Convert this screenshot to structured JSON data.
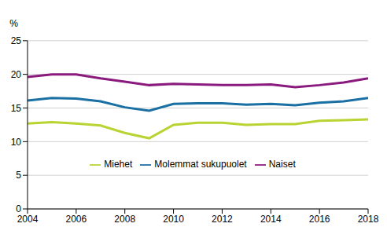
{
  "chart_data": {
    "type": "line",
    "y_label": "%",
    "x": [
      2004,
      2005,
      2006,
      2007,
      2008,
      2009,
      2010,
      2011,
      2012,
      2013,
      2014,
      2015,
      2016,
      2017,
      2018
    ],
    "series": [
      {
        "name": "Molemmat sukupuolet",
        "color": "#1a6fa3",
        "values": [
          16.1,
          16.5,
          16.4,
          16.0,
          15.1,
          14.6,
          15.6,
          15.7,
          15.7,
          15.5,
          15.6,
          15.4,
          15.8,
          16.0,
          16.5
        ]
      },
      {
        "name": "Miehet",
        "color": "#b8d432",
        "values": [
          12.7,
          12.9,
          12.7,
          12.4,
          11.3,
          10.5,
          12.5,
          12.8,
          12.8,
          12.5,
          12.6,
          12.6,
          13.1,
          13.2,
          13.3
        ]
      },
      {
        "name": "Naiset",
        "color": "#8a1a7e",
        "values": [
          19.6,
          20.0,
          20.0,
          19.4,
          18.9,
          18.4,
          18.6,
          18.5,
          18.4,
          18.4,
          18.5,
          18.1,
          18.4,
          18.8,
          19.4
        ]
      }
    ],
    "xlim": [
      2004,
      2018
    ],
    "xticks": [
      2004,
      2006,
      2008,
      2010,
      2012,
      2014,
      2016,
      2018
    ],
    "ylim": [
      0,
      25
    ],
    "yticks": [
      0,
      5,
      10,
      15,
      20,
      25
    ],
    "grid": true,
    "legend": "lower center"
  }
}
